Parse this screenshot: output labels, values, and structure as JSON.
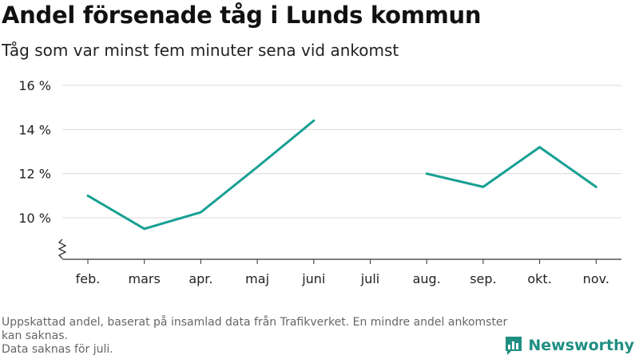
{
  "title": "Andel försenade tåg i Lunds kommun",
  "subtitle": "Tåg som var minst fem minuter sena vid ankomst",
  "footnote": {
    "line1": "Uppskattad andel, baserat på insamlad data från Trafikverket. En mindre andel ankomster kan saknas.",
    "line2": "Data saknas för juli."
  },
  "brand": {
    "name": "Newsworthy",
    "icon": "newsworthy-logo-icon"
  },
  "colors": {
    "line": "#16a094",
    "grid": "#d9d9d9",
    "axis": "#333333"
  },
  "chart_data": {
    "type": "line",
    "categories": [
      "feb.",
      "mars",
      "apr.",
      "maj",
      "juni",
      "juli",
      "aug.",
      "sep.",
      "okt.",
      "nov."
    ],
    "series": [
      {
        "values": [
          11.0,
          9.5,
          10.25,
          12.3,
          14.4,
          null,
          12.0,
          11.4,
          13.2,
          11.4
        ]
      }
    ],
    "y_ticks": [
      10,
      12,
      14,
      16
    ],
    "y_tick_labels": [
      "10 %",
      "12 %",
      "14 %",
      "16 %"
    ],
    "ylim": [
      8.1,
      16
    ],
    "y_axis_break": true,
    "grid": true,
    "xlabel": "",
    "ylabel": ""
  }
}
